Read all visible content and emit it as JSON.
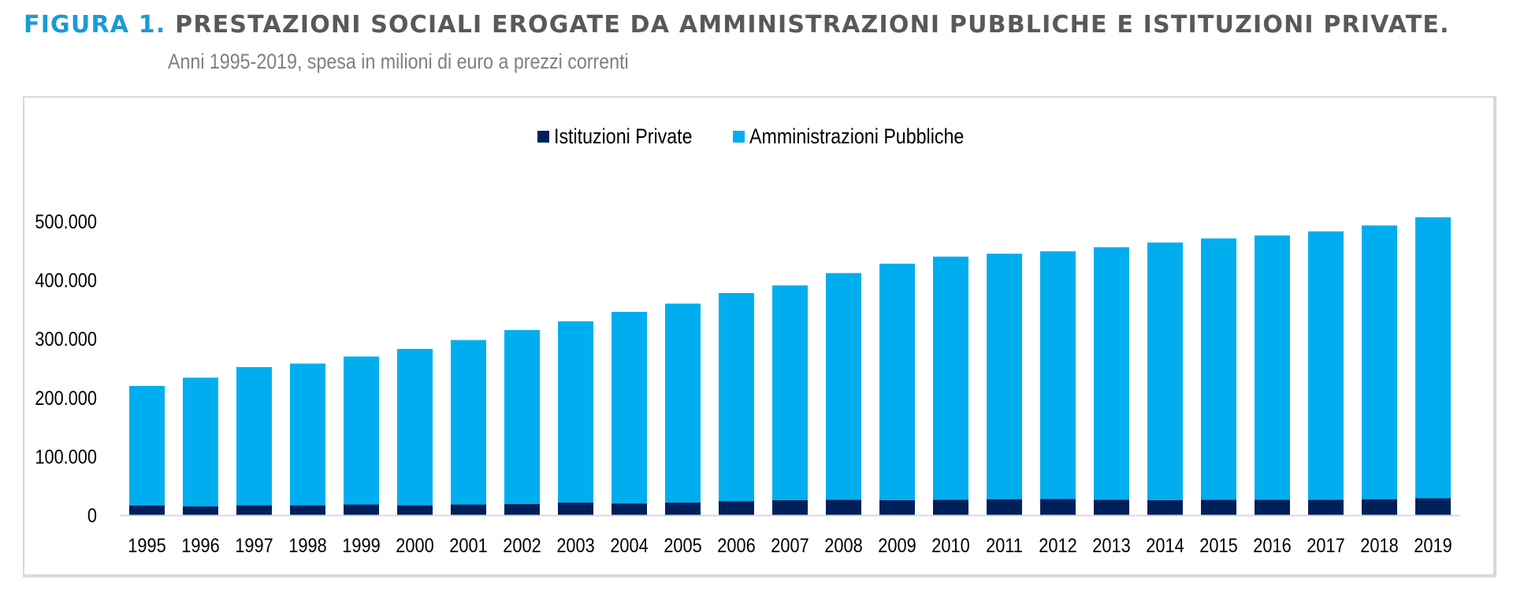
{
  "header": {
    "figure_label": "FIGURA 1.",
    "title": "PRESTAZIONI SOCIALI EROGATE DA AMMINISTRAZIONI PUBBLICHE E ISTITUZIONI PRIVATE.",
    "subtitle": "Anni 1995-2019, spesa in milioni di euro a prezzi correnti"
  },
  "colors": {
    "figure_label": "#1a9bd7",
    "title": "#595959",
    "istituzioni_private": "#00205b",
    "amministrazioni_pubbliche": "#00aeef",
    "axis": "#d9d9d9"
  },
  "chart_data": {
    "type": "bar",
    "stacked": true,
    "title": "PRESTAZIONI SOCIALI EROGATE DA AMMINISTRAZIONI PUBBLICHE E ISTITUZIONI PRIVATE.",
    "subtitle": "Anni 1995-2019, spesa in milioni di euro a prezzi correnti",
    "xlabel": "",
    "ylabel": "",
    "ylim": [
      0,
      500000
    ],
    "yticks": [
      0,
      100000,
      200000,
      300000,
      400000,
      500000
    ],
    "ytick_labels": [
      "0",
      "100.000",
      "200.000",
      "300.000",
      "400.000",
      "500.000"
    ],
    "grid": false,
    "legend_position": "top-center",
    "categories": [
      "1995",
      "1996",
      "1997",
      "1998",
      "1999",
      "2000",
      "2001",
      "2002",
      "2003",
      "2004",
      "2005",
      "2006",
      "2007",
      "2008",
      "2009",
      "2010",
      "2011",
      "2012",
      "2013",
      "2014",
      "2015",
      "2016",
      "2017",
      "2018",
      "2019"
    ],
    "series": [
      {
        "name": "Istituzioni Private",
        "color": "#00205b",
        "values": [
          16600,
          15200,
          17000,
          17000,
          18300,
          17000,
          18300,
          19200,
          21500,
          20000,
          21500,
          24000,
          25500,
          26400,
          25500,
          26400,
          27300,
          27700,
          26400,
          25500,
          26400,
          26400,
          26400,
          27300,
          29000
        ]
      },
      {
        "name": "Amministrazioni Pubbliche",
        "color": "#00aeef",
        "values": [
          203400,
          218800,
          235000,
          241000,
          251700,
          266000,
          279700,
          295800,
          308500,
          326000,
          338500,
          354000,
          365500,
          385600,
          402500,
          413600,
          417700,
          421300,
          429600,
          438500,
          444600,
          449600,
          456600,
          465700,
          478000
        ]
      }
    ]
  }
}
